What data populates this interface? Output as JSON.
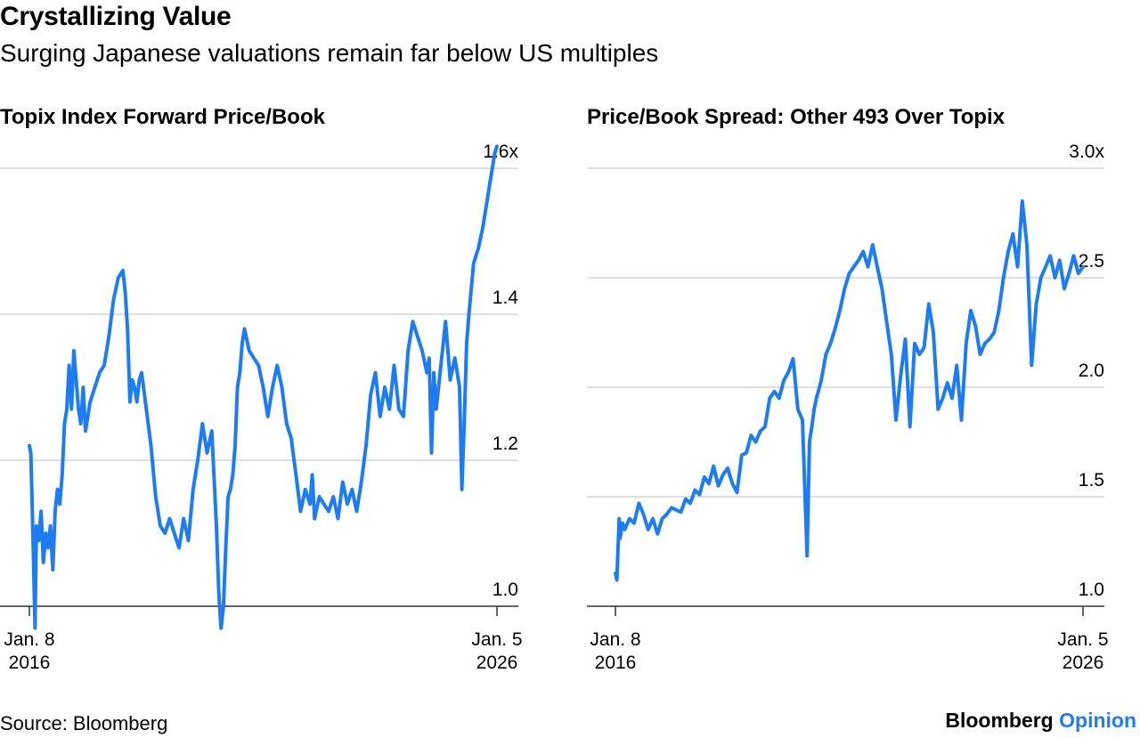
{
  "header": {
    "title": "Crystallizing Value",
    "subtitle": "Surging Japanese valuations remain far below US multiples"
  },
  "footer": {
    "source": "Source: Bloomberg",
    "brand_main": "Bloomberg",
    "brand_accent": "Opinion"
  },
  "colors": {
    "line": "#1e7cf2",
    "grid": "#cccccc",
    "axis": "#333333",
    "brand_accent": "#1e7cf2"
  },
  "chart_data": [
    {
      "type": "line",
      "title": "Topix Index Forward Price/Book",
      "ylim": [
        1.0,
        1.6
      ],
      "yticks": [
        1.0,
        1.2,
        1.4,
        1.6
      ],
      "ytick_labels": [
        "1.0",
        "1.2",
        "1.4",
        "1.6x"
      ],
      "xlim": [
        2016.0,
        2026.0
      ],
      "xtick_labels": [
        {
          "x": 2016.0,
          "line1": "Jan. 8",
          "line2": "2016"
        },
        {
          "x": 2026.0,
          "line1": "Jan. 5",
          "line2": "2026"
        }
      ],
      "series": [
        {
          "name": "Topix Index Forward Price/Book",
          "x": [
            2016.0,
            2016.03,
            2016.06,
            2016.09,
            2016.12,
            2016.15,
            2016.2,
            2016.25,
            2016.3,
            2016.35,
            2016.4,
            2016.45,
            2016.5,
            2016.55,
            2016.6,
            2016.65,
            2016.7,
            2016.75,
            2016.8,
            2016.85,
            2016.9,
            2016.95,
            2017.0,
            2017.05,
            2017.1,
            2017.15,
            2017.2,
            2017.3,
            2017.4,
            2017.5,
            2017.6,
            2017.7,
            2017.8,
            2017.9,
            2018.0,
            2018.05,
            2018.1,
            2018.15,
            2018.2,
            2018.25,
            2018.3,
            2018.35,
            2018.4,
            2018.5,
            2018.6,
            2018.7,
            2018.8,
            2018.9,
            2019.0,
            2019.1,
            2019.2,
            2019.3,
            2019.4,
            2019.5,
            2019.6,
            2019.7,
            2019.8,
            2019.9,
            2020.0,
            2020.05,
            2020.1,
            2020.15,
            2020.2,
            2020.25,
            2020.3,
            2020.35,
            2020.4,
            2020.45,
            2020.5,
            2020.55,
            2020.6,
            2020.7,
            2020.8,
            2020.9,
            2021.0,
            2021.05,
            2021.1,
            2021.2,
            2021.3,
            2021.4,
            2021.5,
            2021.6,
            2021.7,
            2021.8,
            2021.9,
            2022.0,
            2022.05,
            2022.1,
            2022.2,
            2022.3,
            2022.4,
            2022.5,
            2022.6,
            2022.7,
            2022.8,
            2022.9,
            2023.0,
            2023.1,
            2023.2,
            2023.3,
            2023.4,
            2023.5,
            2023.6,
            2023.7,
            2023.8,
            2023.9,
            2024.0,
            2024.1,
            2024.2,
            2024.3,
            2024.4,
            2024.5,
            2024.55,
            2024.6,
            2024.65,
            2024.7,
            2024.8,
            2024.9,
            2025.0,
            2025.1,
            2025.2,
            2025.25,
            2025.3,
            2025.35,
            2025.4,
            2025.5,
            2025.6,
            2025.7,
            2025.8,
            2025.85,
            2025.9,
            2025.95,
            2026.0
          ],
          "values": [
            1.22,
            1.21,
            1.14,
            1.06,
            0.97,
            1.11,
            1.09,
            1.13,
            1.06,
            1.1,
            1.08,
            1.11,
            1.05,
            1.13,
            1.16,
            1.14,
            1.18,
            1.25,
            1.27,
            1.33,
            1.27,
            1.35,
            1.31,
            1.27,
            1.25,
            1.3,
            1.24,
            1.28,
            1.3,
            1.32,
            1.33,
            1.37,
            1.42,
            1.45,
            1.46,
            1.43,
            1.38,
            1.28,
            1.31,
            1.3,
            1.28,
            1.31,
            1.32,
            1.27,
            1.22,
            1.15,
            1.11,
            1.1,
            1.12,
            1.1,
            1.08,
            1.12,
            1.09,
            1.16,
            1.2,
            1.25,
            1.21,
            1.24,
            1.11,
            1.02,
            0.97,
            1.0,
            1.08,
            1.15,
            1.16,
            1.18,
            1.22,
            1.3,
            1.32,
            1.36,
            1.38,
            1.35,
            1.34,
            1.33,
            1.3,
            1.28,
            1.26,
            1.3,
            1.33,
            1.3,
            1.25,
            1.23,
            1.18,
            1.13,
            1.16,
            1.14,
            1.18,
            1.12,
            1.15,
            1.14,
            1.13,
            1.15,
            1.12,
            1.17,
            1.14,
            1.16,
            1.13,
            1.17,
            1.22,
            1.29,
            1.32,
            1.26,
            1.3,
            1.27,
            1.33,
            1.27,
            1.26,
            1.35,
            1.39,
            1.37,
            1.35,
            1.32,
            1.34,
            1.21,
            1.32,
            1.27,
            1.33,
            1.39,
            1.31,
            1.34,
            1.3,
            1.16,
            1.25,
            1.36,
            1.4,
            1.47,
            1.49,
            1.52,
            1.56,
            1.58,
            1.6,
            1.62,
            1.63
          ]
        }
      ]
    },
    {
      "type": "line",
      "title": "Price/Book Spread: Other 493 Over Topix",
      "ylim": [
        1.0,
        3.0
      ],
      "yticks": [
        1.0,
        1.5,
        2.0,
        2.5,
        3.0
      ],
      "ytick_labels": [
        "1.0",
        "1.5",
        "2.0",
        "2.5",
        "3.0x"
      ],
      "xlim": [
        2016.0,
        2026.0
      ],
      "xtick_labels": [
        {
          "x": 2016.0,
          "line1": "Jan. 8",
          "line2": "2016"
        },
        {
          "x": 2026.0,
          "line1": "Jan. 5",
          "line2": "2026"
        }
      ],
      "series": [
        {
          "name": "Price/Book Spread: Other 493 Over Topix",
          "x": [
            2016.0,
            2016.03,
            2016.08,
            2016.1,
            2016.15,
            2016.2,
            2016.3,
            2016.4,
            2016.5,
            2016.6,
            2016.7,
            2016.8,
            2016.9,
            2017.0,
            2017.1,
            2017.2,
            2017.3,
            2017.4,
            2017.5,
            2017.6,
            2017.7,
            2017.8,
            2017.9,
            2018.0,
            2018.1,
            2018.2,
            2018.3,
            2018.4,
            2018.5,
            2018.6,
            2018.7,
            2018.8,
            2018.9,
            2019.0,
            2019.1,
            2019.2,
            2019.3,
            2019.4,
            2019.5,
            2019.6,
            2019.7,
            2019.8,
            2019.9,
            2020.0,
            2020.1,
            2020.15,
            2020.2,
            2020.25,
            2020.3,
            2020.4,
            2020.5,
            2020.6,
            2020.7,
            2020.8,
            2020.9,
            2021.0,
            2021.1,
            2021.2,
            2021.3,
            2021.4,
            2021.5,
            2021.6,
            2021.7,
            2021.8,
            2021.9,
            2022.0,
            2022.1,
            2022.2,
            2022.3,
            2022.4,
            2022.5,
            2022.6,
            2022.7,
            2022.8,
            2022.9,
            2023.0,
            2023.1,
            2023.2,
            2023.3,
            2023.4,
            2023.5,
            2023.6,
            2023.7,
            2023.8,
            2023.9,
            2024.0,
            2024.1,
            2024.2,
            2024.3,
            2024.4,
            2024.5,
            2024.6,
            2024.7,
            2024.8,
            2024.9,
            2025.0,
            2025.1,
            2025.2,
            2025.3,
            2025.4,
            2025.5,
            2025.6,
            2025.7,
            2025.8,
            2025.9,
            2026.0
          ],
          "values": [
            1.15,
            1.12,
            1.4,
            1.31,
            1.38,
            1.35,
            1.4,
            1.38,
            1.47,
            1.42,
            1.35,
            1.4,
            1.33,
            1.4,
            1.42,
            1.45,
            1.44,
            1.43,
            1.49,
            1.47,
            1.53,
            1.51,
            1.59,
            1.56,
            1.64,
            1.55,
            1.6,
            1.63,
            1.56,
            1.52,
            1.69,
            1.7,
            1.78,
            1.75,
            1.8,
            1.82,
            1.95,
            1.98,
            1.95,
            2.03,
            2.07,
            2.13,
            1.9,
            1.85,
            1.23,
            1.75,
            1.82,
            1.9,
            1.95,
            2.03,
            2.15,
            2.2,
            2.27,
            2.35,
            2.45,
            2.52,
            2.55,
            2.58,
            2.62,
            2.55,
            2.65,
            2.55,
            2.45,
            2.3,
            2.15,
            1.85,
            2.05,
            2.22,
            1.82,
            2.2,
            2.15,
            2.18,
            2.38,
            2.25,
            1.9,
            1.95,
            2.02,
            1.95,
            2.1,
            1.85,
            2.2,
            2.35,
            2.28,
            2.15,
            2.2,
            2.22,
            2.25,
            2.35,
            2.5,
            2.62,
            2.7,
            2.55,
            2.85,
            2.65,
            2.1,
            2.38,
            2.5,
            2.55,
            2.6,
            2.5,
            2.58,
            2.45,
            2.52,
            2.6,
            2.52,
            2.55
          ]
        }
      ]
    }
  ]
}
